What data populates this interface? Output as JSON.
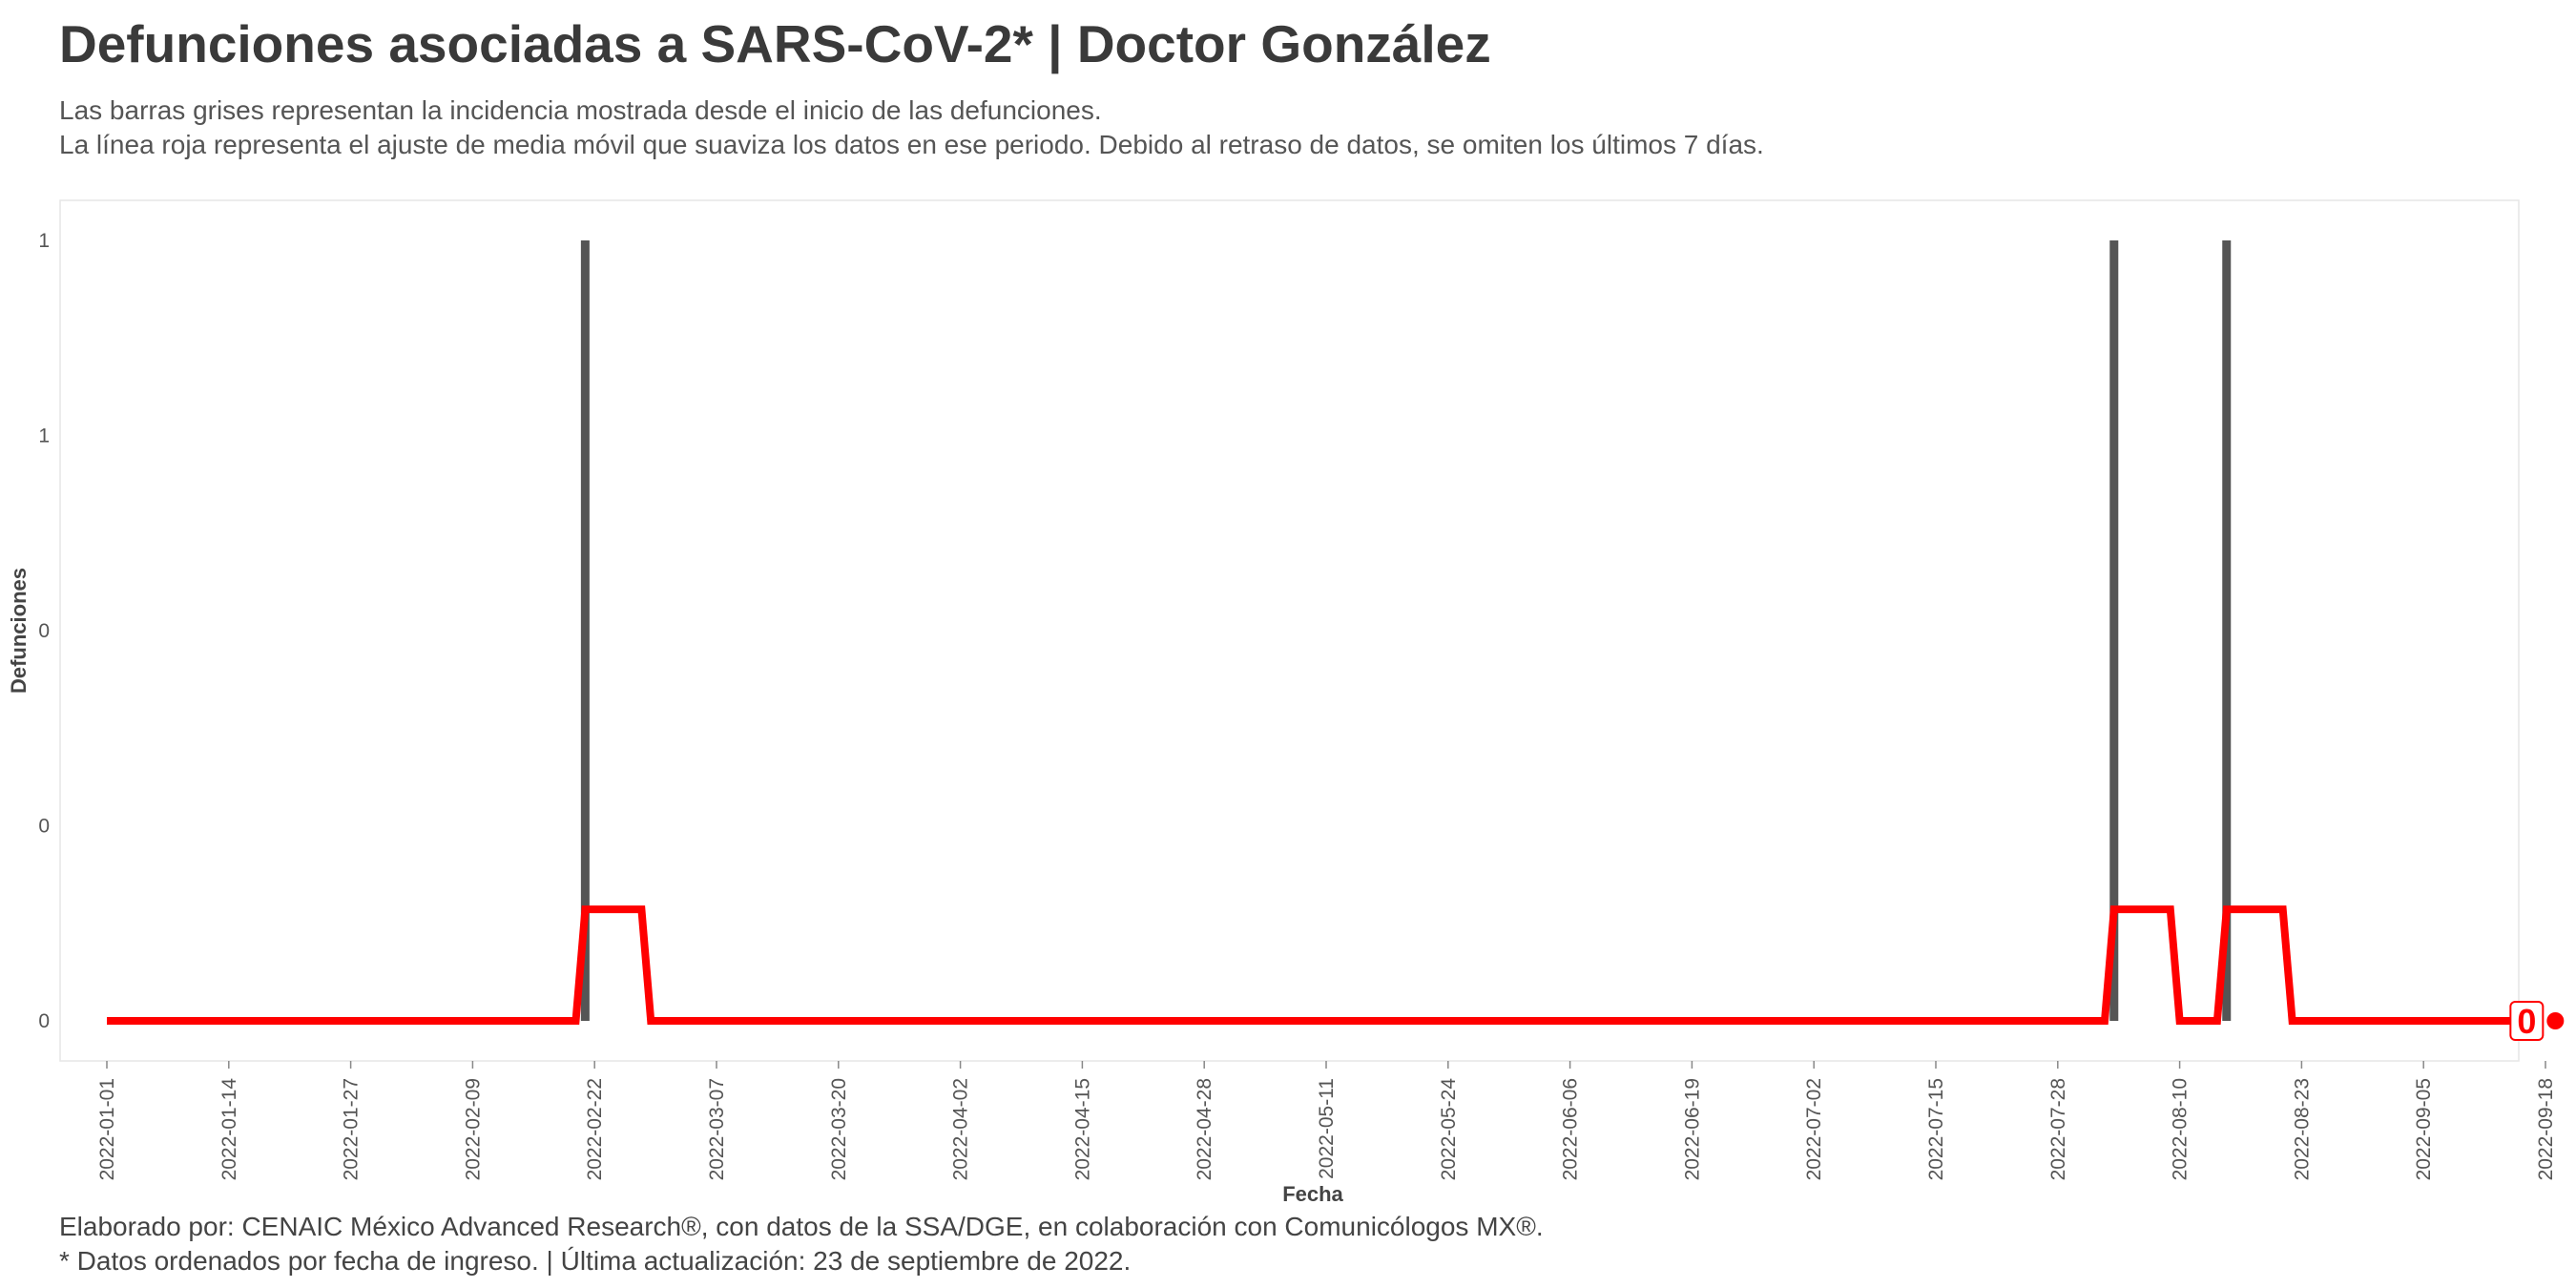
{
  "header": {
    "title": "Defunciones asociadas a SARS-CoV-2* | Doctor González",
    "subtitle_line1": "Las barras grises representan la incidencia mostrada desde el inicio de las defunciones.",
    "subtitle_line2": "La línea roja representa el ajuste de media móvil que suaviza los datos en ese periodo. Debido al retraso de datos, se omiten los últimos 7 días."
  },
  "caption": {
    "line1": "Elaborado por: CENAIC México Advanced Research®, con datos de la SSA/DGE, en colaboración con Comunicólogos MX®.",
    "line2": "* Datos ordenados por fecha de ingreso. | Última actualización: 23 de septiembre de 2022."
  },
  "colors": {
    "bars": "#555555",
    "line": "#ff0000",
    "panel_border": "#e6e6e6"
  },
  "chart_data": {
    "type": "bar",
    "xlabel": "Fecha",
    "ylabel": "Defunciones",
    "x_range": [
      "2022-01-01",
      "2022-09-18"
    ],
    "ylim": [
      0,
      1
    ],
    "y_ticks": [
      {
        "value": 0,
        "label": "0"
      },
      {
        "value": 0.25,
        "label": "0"
      },
      {
        "value": 0.5,
        "label": "0"
      },
      {
        "value": 0.75,
        "label": "1"
      },
      {
        "value": 1,
        "label": "1"
      }
    ],
    "x_ticks": [
      "2022-01-01",
      "2022-01-14",
      "2022-01-27",
      "2022-02-09",
      "2022-02-22",
      "2022-03-07",
      "2022-03-20",
      "2022-04-02",
      "2022-04-15",
      "2022-04-28",
      "2022-05-11",
      "2022-05-24",
      "2022-06-06",
      "2022-06-19",
      "2022-07-02",
      "2022-07-15",
      "2022-07-28",
      "2022-08-10",
      "2022-08-23",
      "2022-09-05",
      "2022-09-18"
    ],
    "grid": false,
    "series": [
      {
        "kind": "bar",
        "points": [
          {
            "x": "2022-02-21",
            "y": 1
          },
          {
            "x": "2022-08-03",
            "y": 1
          },
          {
            "x": "2022-08-15",
            "y": 1
          }
        ]
      },
      {
        "kind": "line",
        "points": [
          {
            "x": "2022-01-01",
            "y": 0
          },
          {
            "x": "2022-02-20",
            "y": 0
          },
          {
            "x": "2022-02-21",
            "y": 0.1429
          },
          {
            "x": "2022-02-27",
            "y": 0.1429
          },
          {
            "x": "2022-02-28",
            "y": 0
          },
          {
            "x": "2022-08-02",
            "y": 0
          },
          {
            "x": "2022-08-03",
            "y": 0.1429
          },
          {
            "x": "2022-08-09",
            "y": 0.1429
          },
          {
            "x": "2022-08-10",
            "y": 0
          },
          {
            "x": "2022-08-14",
            "y": 0
          },
          {
            "x": "2022-08-15",
            "y": 0.1429
          },
          {
            "x": "2022-08-21",
            "y": 0.1429
          },
          {
            "x": "2022-08-22",
            "y": 0
          },
          {
            "x": "2022-09-16",
            "y": 0
          }
        ]
      }
    ],
    "annotations": [
      {
        "x": "2022-09-16",
        "y": 0,
        "text": "0"
      }
    ]
  }
}
